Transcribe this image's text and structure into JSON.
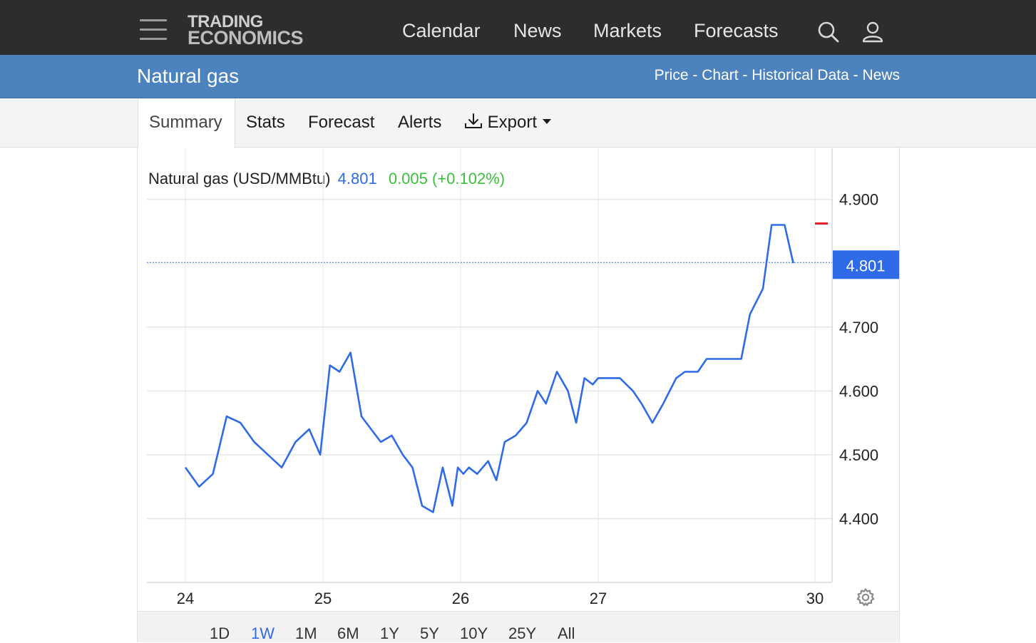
{
  "nav": {
    "logo_line1": "TRADING",
    "logo_line2": "ECONOMICS",
    "links": [
      "Calendar",
      "News",
      "Markets",
      "Forecasts"
    ],
    "icons": [
      "menu-icon",
      "search-icon",
      "user-icon"
    ]
  },
  "header": {
    "title": "Natural gas",
    "links": [
      "Price",
      "Chart",
      "Historical Data",
      "News"
    ],
    "separator": "-"
  },
  "tabs": {
    "items": [
      "Summary",
      "Stats",
      "Forecast",
      "Alerts"
    ],
    "active": "Summary",
    "export_label": "Export"
  },
  "legend": {
    "name": "Natural gas (USD/MMBtu)",
    "price": "4.801",
    "change": "0.005 (+0.102%)"
  },
  "range": {
    "buttons": [
      "1D",
      "1W",
      "1M",
      "6M",
      "1Y",
      "5Y",
      "10Y",
      "25Y",
      "All"
    ],
    "active": "1W"
  },
  "colors": {
    "nav_bg": "#2d2d2d",
    "header_bg": "#4c82bd",
    "line": "#2f6be8",
    "positive": "#3cbf3c",
    "marker": "#e8202a"
  },
  "chart_data": {
    "type": "line",
    "ylim": [
      4.3,
      4.98
    ],
    "y_ticks": [
      "4.900",
      "4.700",
      "4.600",
      "4.500",
      "4.400"
    ],
    "x_ticks": [
      "24",
      "25",
      "26",
      "27",
      "30"
    ],
    "last_value_label": "4.801",
    "last_value": 4.801,
    "series": [
      {
        "x": [
          0.0,
          0.1,
          0.2,
          0.3,
          0.4,
          0.5,
          0.6,
          0.7,
          0.8,
          0.9,
          0.98,
          1.05,
          1.12,
          1.2,
          1.28,
          1.35,
          1.42,
          1.5,
          1.58,
          1.65,
          1.72,
          1.8,
          1.87,
          1.94,
          1.98,
          2.02,
          2.06,
          2.12,
          2.2,
          2.26,
          2.32,
          2.4,
          2.48,
          2.56,
          2.62,
          2.7,
          2.78,
          2.84,
          2.9,
          2.96,
          3.0,
          3.03,
          3.1,
          3.16,
          3.2,
          3.25,
          3.3,
          3.36,
          3.4,
          3.46,
          3.5,
          3.56,
          3.6,
          3.66,
          3.7,
          3.76,
          3.8,
          3.86,
          3.9
        ],
        "y": [
          4.48,
          4.45,
          4.47,
          4.56,
          4.55,
          4.52,
          4.5,
          4.48,
          4.52,
          4.54,
          4.5,
          4.64,
          4.63,
          4.66,
          4.56,
          4.54,
          4.52,
          4.53,
          4.5,
          4.48,
          4.42,
          4.41,
          4.48,
          4.42,
          4.48,
          4.47,
          4.48,
          4.47,
          4.49,
          4.46,
          4.52,
          4.53,
          4.55,
          4.6,
          4.58,
          4.63,
          4.6,
          4.55,
          4.62,
          4.61,
          4.62,
          4.62,
          4.62,
          4.6,
          4.58,
          4.55,
          4.58,
          4.62,
          4.63,
          4.63,
          4.65,
          4.65,
          4.65,
          4.65,
          4.72,
          4.76,
          4.86,
          4.86,
          4.8
        ]
      }
    ]
  }
}
